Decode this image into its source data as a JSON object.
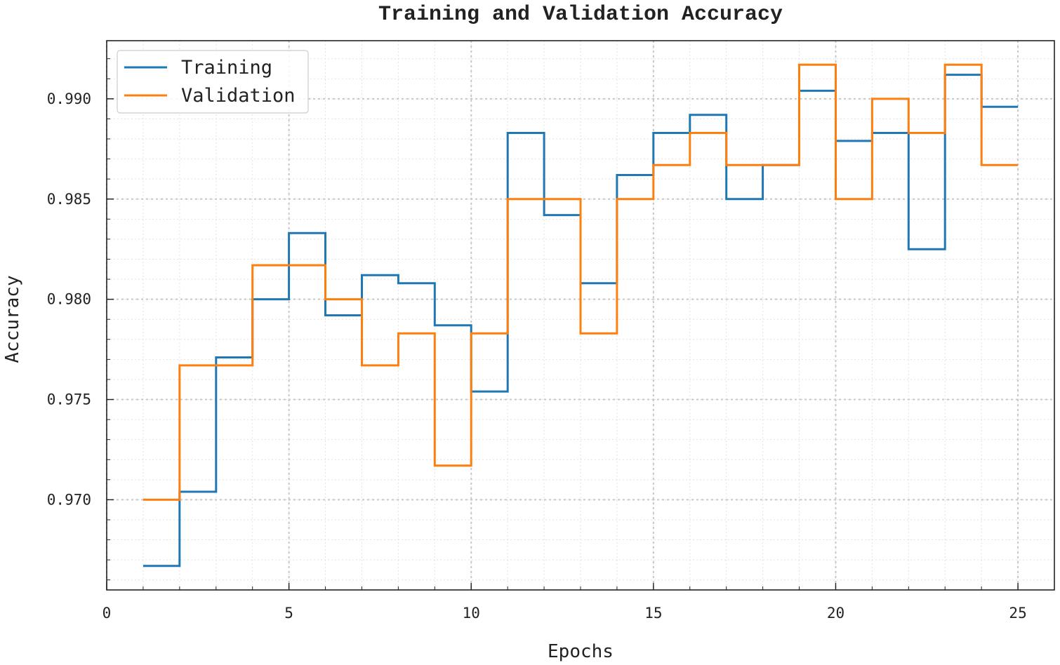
{
  "chart_data": {
    "type": "line",
    "step": "post",
    "title": "Training and Validation Accuracy",
    "xlabel": "Epochs",
    "ylabel": "Accuracy",
    "xlim": [
      0,
      26
    ],
    "ylim": [
      0.9655,
      0.9929
    ],
    "xticks": [
      0,
      5,
      10,
      15,
      20,
      25
    ],
    "yticks": [
      0.97,
      0.975,
      0.98,
      0.985,
      0.99
    ],
    "xtick_labels": [
      "0",
      "5",
      "10",
      "15",
      "20",
      "25"
    ],
    "ytick_labels": [
      "0.970",
      "0.975",
      "0.980",
      "0.985",
      "0.990"
    ],
    "grid": true,
    "legend_position": "top-left",
    "x": [
      1,
      2,
      3,
      4,
      5,
      6,
      7,
      8,
      9,
      10,
      11,
      12,
      13,
      14,
      15,
      16,
      17,
      18,
      19,
      20,
      21,
      22,
      23,
      24,
      25
    ],
    "series": [
      {
        "name": "Training",
        "color": "#1f77b4",
        "values": [
          0.9667,
          0.9704,
          0.9771,
          0.98,
          0.9833,
          0.9792,
          0.9812,
          0.9808,
          0.9787,
          0.9754,
          0.9883,
          0.9842,
          0.9808,
          0.9862,
          0.9883,
          0.9892,
          0.985,
          0.9867,
          0.9904,
          0.9879,
          0.9883,
          0.9825,
          0.9912,
          0.9896,
          0.9896
        ]
      },
      {
        "name": "Validation",
        "color": "#ff7f0e",
        "values": [
          0.97,
          0.9767,
          0.9767,
          0.9817,
          0.9817,
          0.98,
          0.9767,
          0.9783,
          0.9717,
          0.9783,
          0.985,
          0.985,
          0.9783,
          0.985,
          0.9867,
          0.9883,
          0.9867,
          0.9867,
          0.9917,
          0.985,
          0.99,
          0.9883,
          0.9917,
          0.9867,
          0.9867
        ]
      }
    ]
  }
}
